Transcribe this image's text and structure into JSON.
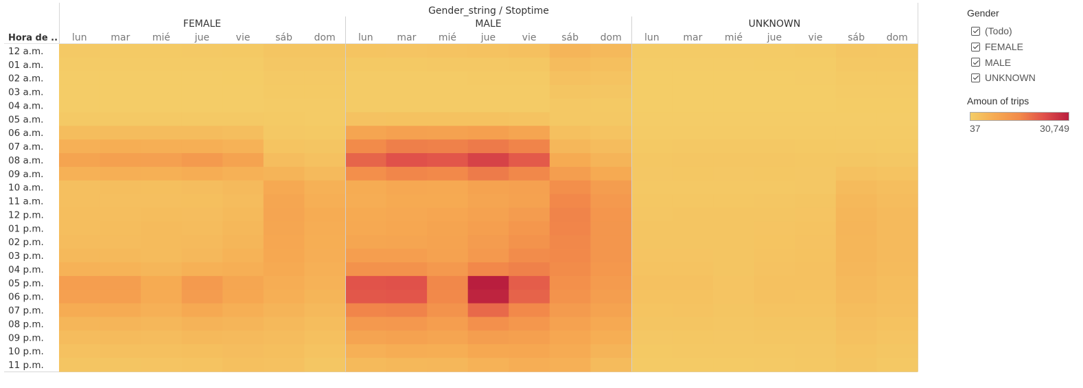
{
  "chart_data": {
    "type": "heatmap",
    "title": "Gender_string / Stoptime",
    "row_header": "Hora de ..",
    "groups": [
      "FEMALE",
      "MALE",
      "UNKNOWN"
    ],
    "days": [
      "lun",
      "mar",
      "mié",
      "jue",
      "vie",
      "sáb",
      "dom"
    ],
    "hours": [
      "12 a.m.",
      "01 a.m.",
      "02 a.m.",
      "03 a.m.",
      "04 a.m.",
      "05 a.m.",
      "06 a.m.",
      "07 a.m.",
      "08 a.m.",
      "09 a.m.",
      "10 a.m.",
      "11 a.m.",
      "12 p.m.",
      "01 p.m.",
      "02 p.m.",
      "03 p.m.",
      "04 p.m.",
      "05 p.m.",
      "06 p.m.",
      "07 p.m.",
      "08 p.m.",
      "09 p.m.",
      "10 p.m.",
      "11 p.m."
    ],
    "values": {
      "FEMALE": [
        [
          900,
          800,
          800,
          850,
          1000,
          1800,
          1800
        ],
        [
          400,
          400,
          400,
          400,
          450,
          1300,
          1300
        ],
        [
          200,
          200,
          200,
          200,
          250,
          900,
          900
        ],
        [
          150,
          150,
          150,
          150,
          150,
          600,
          600
        ],
        [
          150,
          150,
          150,
          150,
          150,
          450,
          450
        ],
        [
          900,
          900,
          900,
          900,
          900,
          600,
          550
        ],
        [
          3600,
          3800,
          3700,
          3700,
          3300,
          1200,
          1000
        ],
        [
          6300,
          6900,
          6600,
          6700,
          5900,
          2100,
          1700
        ],
        [
          9200,
          10200,
          10000,
          11600,
          9300,
          3500,
          2600
        ],
        [
          6100,
          6700,
          6500,
          7000,
          6200,
          5600,
          4100
        ],
        [
          3100,
          3300,
          3200,
          3500,
          4100,
          7900,
          6200
        ],
        [
          3000,
          3100,
          3100,
          3200,
          3800,
          8700,
          6700
        ],
        [
          3300,
          3400,
          3600,
          3500,
          4300,
          8900,
          7200
        ],
        [
          3400,
          3600,
          3900,
          3700,
          4700,
          8700,
          7100
        ],
        [
          3800,
          3800,
          4000,
          4200,
          5100,
          8400,
          6900
        ],
        [
          4500,
          4400,
          4000,
          4600,
          5800,
          8200,
          6800
        ],
        [
          5900,
          5800,
          5000,
          6200,
          6700,
          7700,
          6300
        ],
        [
          10500,
          10600,
          7600,
          11500,
          8700,
          7100,
          5900
        ],
        [
          10000,
          10300,
          7500,
          11000,
          8400,
          6700,
          5400
        ],
        [
          7200,
          7500,
          6300,
          8000,
          6600,
          5500,
          4500
        ],
        [
          5100,
          5200,
          4800,
          5700,
          5200,
          4400,
          3600
        ],
        [
          3800,
          4000,
          3800,
          4400,
          4200,
          3800,
          2900
        ],
        [
          2600,
          2900,
          2900,
          3200,
          3500,
          3200,
          2200
        ],
        [
          1700,
          1900,
          2000,
          2300,
          2800,
          2700,
          1500
        ]
      ],
      "MALE": [
        [
          2100,
          2000,
          2300,
          2500,
          2800,
          5200,
          4400
        ],
        [
          1000,
          1000,
          1100,
          1100,
          1400,
          3800,
          3200
        ],
        [
          500,
          500,
          500,
          600,
          700,
          2600,
          2200
        ],
        [
          400,
          400,
          400,
          400,
          500,
          1700,
          1500
        ],
        [
          400,
          400,
          400,
          400,
          400,
          1100,
          1000
        ],
        [
          2400,
          2500,
          2500,
          2500,
          2300,
          1200,
          1100
        ],
        [
          8800,
          9800,
          9600,
          10200,
          9000,
          2800,
          2300
        ],
        [
          15200,
          16900,
          16600,
          17500,
          16200,
          4900,
          3800
        ],
        [
          20300,
          22900,
          22300,
          25000,
          21700,
          7600,
          5500
        ],
        [
          14200,
          15900,
          15500,
          17400,
          15700,
          10600,
          7700
        ],
        [
          7200,
          8100,
          7900,
          9300,
          9900,
          14200,
          10800
        ],
        [
          7000,
          7700,
          7700,
          8800,
          9700,
          15600,
          11800
        ],
        [
          7800,
          8100,
          8600,
          9600,
          11000,
          16200,
          12500
        ],
        [
          8000,
          8400,
          9200,
          10400,
          12200,
          16000,
          12600
        ],
        [
          8700,
          9000,
          9500,
          11000,
          13300,
          15700,
          12600
        ],
        [
          10500,
          10500,
          9600,
          11900,
          14800,
          15500,
          12600
        ],
        [
          13400,
          13500,
          11700,
          15600,
          16600,
          15000,
          12100
        ],
        [
          22700,
          22900,
          15700,
          30749,
          21400,
          14000,
          11300
        ],
        [
          22100,
          22400,
          15500,
          29800,
          20500,
          13300,
          10700
        ],
        [
          16000,
          16300,
          13300,
          19700,
          15500,
          11400,
          9300
        ],
        [
          11800,
          12000,
          10500,
          13900,
          12200,
          9700,
          7900
        ],
        [
          9100,
          9600,
          8800,
          10700,
          10200,
          8500,
          6900
        ],
        [
          6400,
          7000,
          6900,
          8300,
          8500,
          7400,
          5500
        ],
        [
          4300,
          4700,
          4900,
          5900,
          6800,
          6400,
          3900
        ]
      ],
      "UNKNOWN": [
        [
          400,
          400,
          500,
          500,
          600,
          1500,
          1400
        ],
        [
          200,
          200,
          200,
          250,
          300,
          1200,
          1100
        ],
        [
          100,
          100,
          100,
          120,
          150,
          800,
          700
        ],
        [
          80,
          80,
          80,
          80,
          100,
          500,
          450
        ],
        [
          60,
          60,
          60,
          60,
          70,
          300,
          300
        ],
        [
          150,
          150,
          150,
          150,
          150,
          200,
          180
        ],
        [
          500,
          550,
          550,
          550,
          500,
          500,
          450
        ],
        [
          1000,
          1100,
          1100,
          1100,
          1000,
          900,
          800
        ],
        [
          1400,
          1500,
          1500,
          1600,
          1400,
          1500,
          1300
        ],
        [
          1300,
          1400,
          1300,
          1400,
          1300,
          2600,
          2200
        ],
        [
          1100,
          1200,
          1100,
          1200,
          1300,
          4000,
          3300
        ],
        [
          1400,
          1400,
          1400,
          1500,
          1700,
          4700,
          3800
        ],
        [
          1600,
          1700,
          1700,
          1800,
          2000,
          5100,
          4100
        ],
        [
          1800,
          1800,
          1800,
          2000,
          2200,
          5200,
          4200
        ],
        [
          1900,
          1900,
          1800,
          2100,
          2400,
          5100,
          4200
        ],
        [
          2000,
          2000,
          1800,
          2200,
          2500,
          5000,
          4100
        ],
        [
          2200,
          2200,
          1900,
          2400,
          2600,
          4800,
          3900
        ],
        [
          2600,
          2600,
          2000,
          2700,
          2600,
          4400,
          3600
        ],
        [
          2500,
          2500,
          2000,
          2600,
          2500,
          4100,
          3400
        ],
        [
          2100,
          2200,
          1800,
          2300,
          2200,
          3600,
          3000
        ],
        [
          1700,
          1800,
          1600,
          1900,
          1900,
          3100,
          2500
        ],
        [
          1300,
          1400,
          1300,
          1500,
          1600,
          2600,
          2000
        ],
        [
          1000,
          1100,
          1100,
          1200,
          1300,
          2100,
          1600
        ],
        [
          700,
          800,
          800,
          900,
          1100,
          1700,
          1100
        ]
      ]
    },
    "color_scale": {
      "min": 37,
      "max": 30749,
      "stops": [
        "#f4cd67",
        "#f6aa52",
        "#f28a4a",
        "#e0504a",
        "#b91e3e"
      ]
    },
    "grid": false
  },
  "legend": {
    "gender_title": "Gender",
    "gender_items": [
      "(Todo)",
      "FEMALE",
      "MALE",
      "UNKNOWN"
    ],
    "amount_title": "Amoun of trips",
    "min_label": "37",
    "max_label": "30,749"
  }
}
